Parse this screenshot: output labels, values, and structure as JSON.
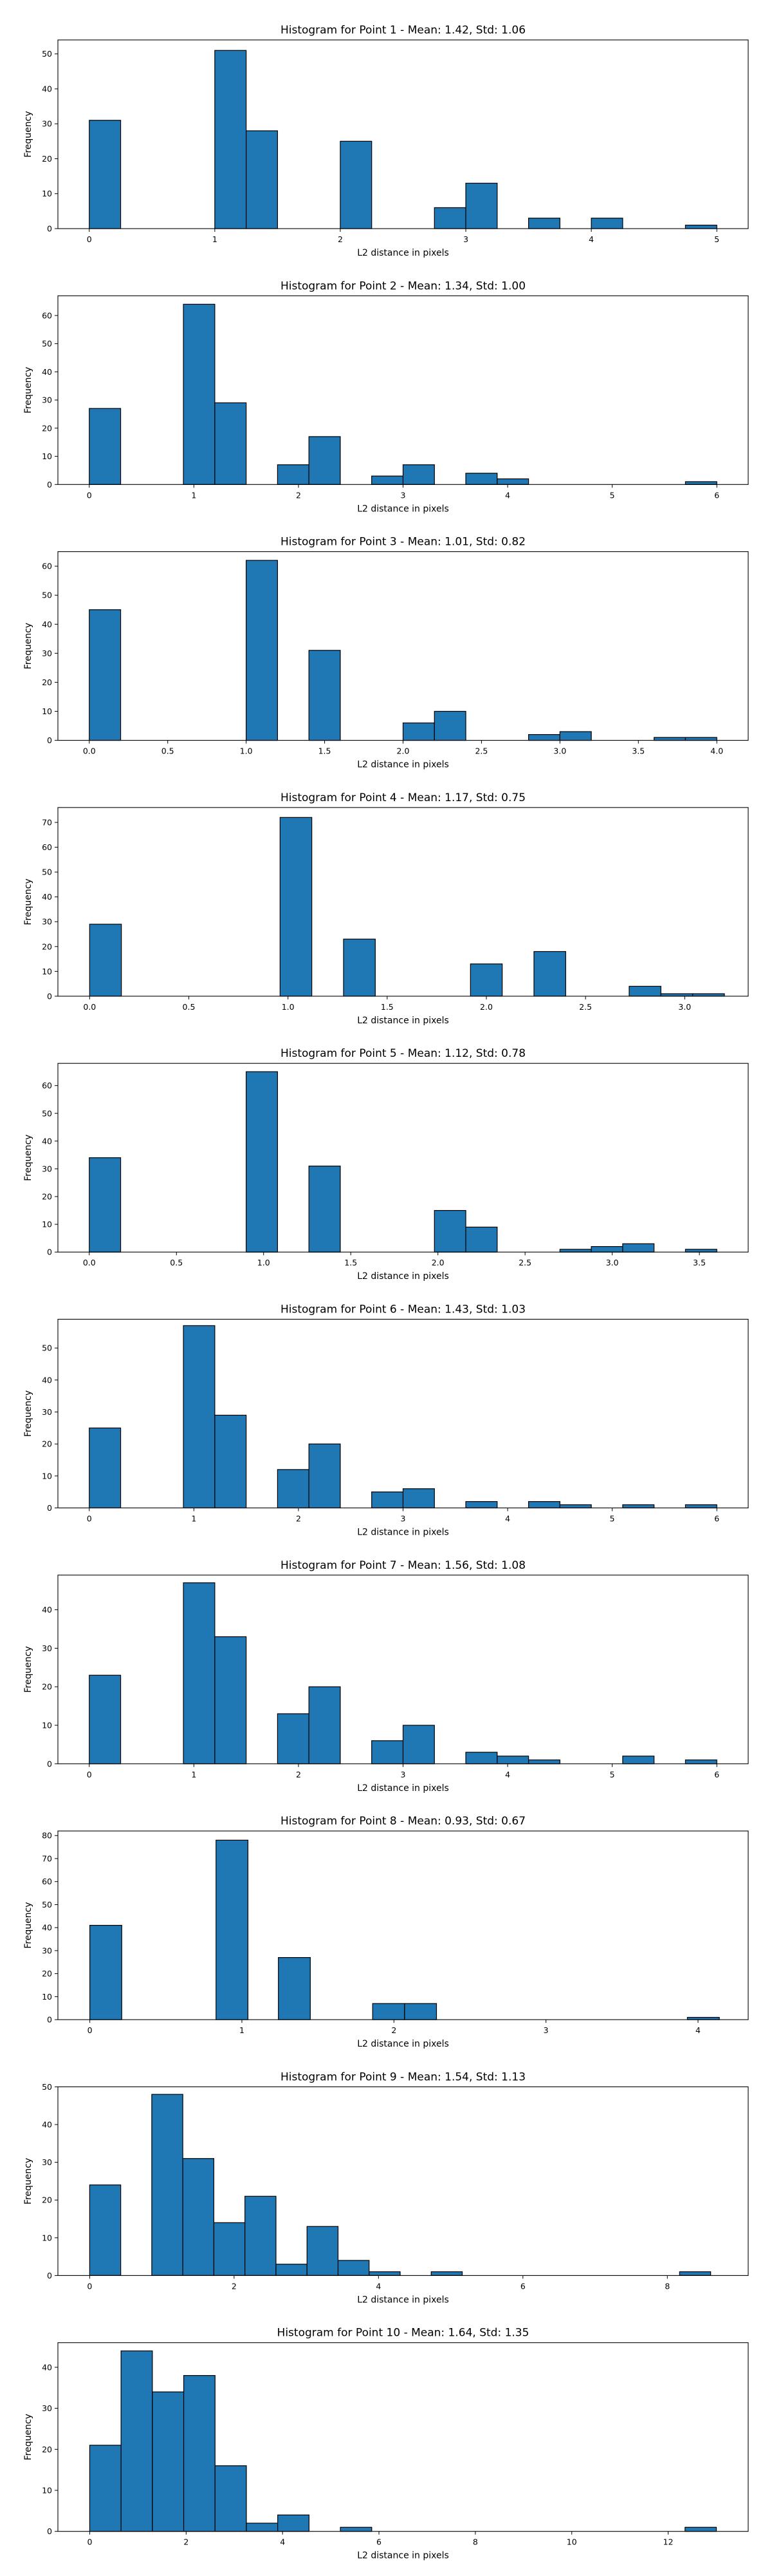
{
  "colors": {
    "bar_fill": "#1f77b4",
    "bar_edge": "#000000",
    "axes": "#000000",
    "background": "#ffffff"
  },
  "chart_data": [
    {
      "type": "histogram",
      "title": "Histogram for Point 1 - Mean: 1.42, Std: 1.06",
      "xlabel": "L2 distance in pixels",
      "ylabel": "Frequency",
      "xlim": [
        -0.25,
        5.25
      ],
      "ylim": [
        0,
        54
      ],
      "xticks": [
        0,
        1,
        2,
        3,
        4,
        5
      ],
      "yticks": [
        0,
        10,
        20,
        30,
        40,
        50
      ],
      "grid": false,
      "legend": "none",
      "bins": [
        {
          "x0": 0.0,
          "x1": 0.25,
          "count": 31
        },
        {
          "x0": 1.0,
          "x1": 1.25,
          "count": 51
        },
        {
          "x0": 1.25,
          "x1": 1.5,
          "count": 28
        },
        {
          "x0": 2.0,
          "x1": 2.25,
          "count": 25
        },
        {
          "x0": 2.75,
          "x1": 3.0,
          "count": 6
        },
        {
          "x0": 3.0,
          "x1": 3.25,
          "count": 13
        },
        {
          "x0": 3.5,
          "x1": 3.75,
          "count": 3
        },
        {
          "x0": 4.0,
          "x1": 4.25,
          "count": 3
        },
        {
          "x0": 4.75,
          "x1": 5.0,
          "count": 1
        }
      ]
    },
    {
      "type": "histogram",
      "title": "Histogram for Point 2 - Mean: 1.34, Std: 1.00",
      "xlabel": "L2 distance in pixels",
      "ylabel": "Frequency",
      "xlim": [
        -0.3,
        6.3
      ],
      "ylim": [
        0,
        67
      ],
      "xticks": [
        0,
        1,
        2,
        3,
        4,
        5,
        6
      ],
      "yticks": [
        0,
        10,
        20,
        30,
        40,
        50,
        60
      ],
      "grid": false,
      "legend": "none",
      "bins": [
        {
          "x0": 0.0,
          "x1": 0.3,
          "count": 27
        },
        {
          "x0": 0.9,
          "x1": 1.2,
          "count": 64
        },
        {
          "x0": 1.2,
          "x1": 1.5,
          "count": 29
        },
        {
          "x0": 1.8,
          "x1": 2.1,
          "count": 7
        },
        {
          "x0": 2.1,
          "x1": 2.4,
          "count": 17
        },
        {
          "x0": 2.7,
          "x1": 3.0,
          "count": 3
        },
        {
          "x0": 3.0,
          "x1": 3.3,
          "count": 7
        },
        {
          "x0": 3.6,
          "x1": 3.9,
          "count": 4
        },
        {
          "x0": 3.9,
          "x1": 4.2,
          "count": 2
        },
        {
          "x0": 5.7,
          "x1": 6.0,
          "count": 1
        }
      ]
    },
    {
      "type": "histogram",
      "title": "Histogram for Point 3 - Mean: 1.01, Std: 0.82",
      "xlabel": "L2 distance in pixels",
      "ylabel": "Frequency",
      "xlim": [
        -0.2,
        4.2
      ],
      "ylim": [
        0,
        65
      ],
      "xticks": [
        0.0,
        0.5,
        1.0,
        1.5,
        2.0,
        2.5,
        3.0,
        3.5,
        4.0
      ],
      "xtick_labels": [
        "0.0",
        "0.5",
        "1.0",
        "1.5",
        "2.0",
        "2.5",
        "3.0",
        "3.5",
        "4.0"
      ],
      "yticks": [
        0,
        10,
        20,
        30,
        40,
        50,
        60
      ],
      "grid": false,
      "legend": "none",
      "bins": [
        {
          "x0": 0.0,
          "x1": 0.2,
          "count": 45
        },
        {
          "x0": 1.0,
          "x1": 1.2,
          "count": 62
        },
        {
          "x0": 1.4,
          "x1": 1.6,
          "count": 31
        },
        {
          "x0": 2.0,
          "x1": 2.2,
          "count": 6
        },
        {
          "x0": 2.2,
          "x1": 2.4,
          "count": 10
        },
        {
          "x0": 2.8,
          "x1": 3.0,
          "count": 2
        },
        {
          "x0": 3.0,
          "x1": 3.2,
          "count": 3
        },
        {
          "x0": 3.6,
          "x1": 3.8,
          "count": 1
        },
        {
          "x0": 3.8,
          "x1": 4.0,
          "count": 1
        }
      ]
    },
    {
      "type": "histogram",
      "title": "Histogram for Point 4 - Mean: 1.17, Std: 0.75",
      "xlabel": "L2 distance in pixels",
      "ylabel": "Frequency",
      "xlim": [
        -0.16,
        3.32
      ],
      "ylim": [
        0,
        76
      ],
      "xticks": [
        0.0,
        0.5,
        1.0,
        1.5,
        2.0,
        2.5,
        3.0
      ],
      "xtick_labels": [
        "0.0",
        "0.5",
        "1.0",
        "1.5",
        "2.0",
        "2.5",
        "3.0"
      ],
      "yticks": [
        0,
        10,
        20,
        30,
        40,
        50,
        60,
        70
      ],
      "grid": false,
      "legend": "none",
      "bins": [
        {
          "x0": 0.0,
          "x1": 0.16,
          "count": 29
        },
        {
          "x0": 0.96,
          "x1": 1.12,
          "count": 72
        },
        {
          "x0": 1.28,
          "x1": 1.44,
          "count": 23
        },
        {
          "x0": 1.92,
          "x1": 2.08,
          "count": 13
        },
        {
          "x0": 2.24,
          "x1": 2.4,
          "count": 18
        },
        {
          "x0": 2.72,
          "x1": 2.88,
          "count": 4
        },
        {
          "x0": 2.88,
          "x1": 3.04,
          "count": 1
        },
        {
          "x0": 3.04,
          "x1": 3.2,
          "count": 1
        }
      ]
    },
    {
      "type": "histogram",
      "title": "Histogram for Point 5 - Mean: 1.12, Std: 0.78",
      "xlabel": "L2 distance in pixels",
      "ylabel": "Frequency",
      "xlim": [
        -0.18,
        3.78
      ],
      "ylim": [
        0,
        68
      ],
      "xticks": [
        0.0,
        0.5,
        1.0,
        1.5,
        2.0,
        2.5,
        3.0,
        3.5
      ],
      "xtick_labels": [
        "0.0",
        "0.5",
        "1.0",
        "1.5",
        "2.0",
        "2.5",
        "3.0",
        "3.5"
      ],
      "yticks": [
        0,
        10,
        20,
        30,
        40,
        50,
        60
      ],
      "grid": false,
      "legend": "none",
      "bins": [
        {
          "x0": 0.0,
          "x1": 0.18,
          "count": 34
        },
        {
          "x0": 0.9,
          "x1": 1.08,
          "count": 65
        },
        {
          "x0": 1.26,
          "x1": 1.44,
          "count": 31
        },
        {
          "x0": 1.98,
          "x1": 2.16,
          "count": 15
        },
        {
          "x0": 2.16,
          "x1": 2.34,
          "count": 9
        },
        {
          "x0": 2.7,
          "x1": 2.88,
          "count": 1
        },
        {
          "x0": 2.88,
          "x1": 3.06,
          "count": 2
        },
        {
          "x0": 3.06,
          "x1": 3.24,
          "count": 3
        },
        {
          "x0": 3.42,
          "x1": 3.6,
          "count": 1
        }
      ]
    },
    {
      "type": "histogram",
      "title": "Histogram for Point 6 - Mean: 1.43, Std: 1.03",
      "xlabel": "L2 distance in pixels",
      "ylabel": "Frequency",
      "xlim": [
        -0.3,
        6.3
      ],
      "ylim": [
        0,
        59
      ],
      "xticks": [
        0,
        1,
        2,
        3,
        4,
        5,
        6
      ],
      "yticks": [
        0,
        10,
        20,
        30,
        40,
        50
      ],
      "grid": false,
      "legend": "none",
      "bins": [
        {
          "x0": 0.0,
          "x1": 0.3,
          "count": 25
        },
        {
          "x0": 0.9,
          "x1": 1.2,
          "count": 57
        },
        {
          "x0": 1.2,
          "x1": 1.5,
          "count": 29
        },
        {
          "x0": 1.8,
          "x1": 2.1,
          "count": 12
        },
        {
          "x0": 2.1,
          "x1": 2.4,
          "count": 20
        },
        {
          "x0": 2.7,
          "x1": 3.0,
          "count": 5
        },
        {
          "x0": 3.0,
          "x1": 3.3,
          "count": 6
        },
        {
          "x0": 3.6,
          "x1": 3.9,
          "count": 2
        },
        {
          "x0": 4.2,
          "x1": 4.5,
          "count": 2
        },
        {
          "x0": 4.5,
          "x1": 4.8,
          "count": 1
        },
        {
          "x0": 5.1,
          "x1": 5.4,
          "count": 1
        },
        {
          "x0": 5.7,
          "x1": 6.0,
          "count": 1
        }
      ]
    },
    {
      "type": "histogram",
      "title": "Histogram for Point 7 - Mean: 1.56, Std: 1.08",
      "xlabel": "L2 distance in pixels",
      "ylabel": "Frequency",
      "xlim": [
        -0.3,
        6.3
      ],
      "ylim": [
        0,
        49
      ],
      "xticks": [
        0,
        1,
        2,
        3,
        4,
        5,
        6
      ],
      "yticks": [
        0,
        10,
        20,
        30,
        40
      ],
      "grid": false,
      "legend": "none",
      "bins": [
        {
          "x0": 0.0,
          "x1": 0.3,
          "count": 23
        },
        {
          "x0": 0.9,
          "x1": 1.2,
          "count": 47
        },
        {
          "x0": 1.2,
          "x1": 1.5,
          "count": 33
        },
        {
          "x0": 1.8,
          "x1": 2.1,
          "count": 13
        },
        {
          "x0": 2.1,
          "x1": 2.4,
          "count": 20
        },
        {
          "x0": 2.7,
          "x1": 3.0,
          "count": 6
        },
        {
          "x0": 3.0,
          "x1": 3.3,
          "count": 10
        },
        {
          "x0": 3.6,
          "x1": 3.9,
          "count": 3
        },
        {
          "x0": 3.9,
          "x1": 4.2,
          "count": 2
        },
        {
          "x0": 4.2,
          "x1": 4.5,
          "count": 1
        },
        {
          "x0": 5.1,
          "x1": 5.4,
          "count": 2
        },
        {
          "x0": 5.7,
          "x1": 6.0,
          "count": 1
        }
      ]
    },
    {
      "type": "histogram",
      "title": "Histogram for Point 8 - Mean: 0.93, Std: 0.67",
      "xlabel": "L2 distance in pixels",
      "ylabel": "Frequency",
      "xlim": [
        -0.21,
        4.33
      ],
      "ylim": [
        0,
        82
      ],
      "xticks": [
        0,
        1,
        2,
        3,
        4
      ],
      "yticks": [
        0,
        10,
        20,
        30,
        40,
        50,
        60,
        70,
        80
      ],
      "grid": false,
      "legend": "none",
      "bins": [
        {
          "x0": 0.0,
          "x1": 0.21,
          "count": 41
        },
        {
          "x0": 0.83,
          "x1": 1.04,
          "count": 78
        },
        {
          "x0": 1.24,
          "x1": 1.45,
          "count": 27
        },
        {
          "x0": 1.86,
          "x1": 2.07,
          "count": 7
        },
        {
          "x0": 2.07,
          "x1": 2.28,
          "count": 7
        },
        {
          "x0": 3.93,
          "x1": 4.14,
          "count": 1
        }
      ]
    },
    {
      "type": "histogram",
      "title": "Histogram for Point 9 - Mean: 1.54, Std: 1.13",
      "xlabel": "L2 distance in pixels",
      "ylabel": "Frequency",
      "xlim": [
        -0.44,
        9.12
      ],
      "ylim": [
        0,
        50
      ],
      "xticks": [
        0,
        2,
        4,
        6,
        8
      ],
      "yticks": [
        0,
        10,
        20,
        30,
        40,
        50
      ],
      "grid": false,
      "legend": "none",
      "bins": [
        {
          "x0": 0.0,
          "x1": 0.43,
          "count": 24
        },
        {
          "x0": 0.86,
          "x1": 1.29,
          "count": 48
        },
        {
          "x0": 1.29,
          "x1": 1.72,
          "count": 31
        },
        {
          "x0": 1.72,
          "x1": 2.15,
          "count": 14
        },
        {
          "x0": 2.15,
          "x1": 2.58,
          "count": 21
        },
        {
          "x0": 2.58,
          "x1": 3.01,
          "count": 3
        },
        {
          "x0": 3.01,
          "x1": 3.44,
          "count": 13
        },
        {
          "x0": 3.44,
          "x1": 3.87,
          "count": 4
        },
        {
          "x0": 3.87,
          "x1": 4.3,
          "count": 1
        },
        {
          "x0": 4.73,
          "x1": 5.16,
          "count": 1
        },
        {
          "x0": 8.17,
          "x1": 8.6,
          "count": 1
        }
      ]
    },
    {
      "type": "histogram",
      "title": "Histogram for Point 10 - Mean: 1.64, Std: 1.35",
      "xlabel": "L2 distance in pixels",
      "ylabel": "Frequency",
      "xlim": [
        -0.66,
        13.66
      ],
      "ylim": [
        0,
        46
      ],
      "xticks": [
        0,
        2,
        4,
        6,
        8,
        10,
        12
      ],
      "yticks": [
        0,
        10,
        20,
        30,
        40
      ],
      "grid": false,
      "legend": "none",
      "bins": [
        {
          "x0": 0.0,
          "x1": 0.65,
          "count": 21
        },
        {
          "x0": 0.65,
          "x1": 1.3,
          "count": 44
        },
        {
          "x0": 1.3,
          "x1": 1.95,
          "count": 34
        },
        {
          "x0": 1.95,
          "x1": 2.6,
          "count": 38
        },
        {
          "x0": 2.6,
          "x1": 3.25,
          "count": 16
        },
        {
          "x0": 3.25,
          "x1": 3.9,
          "count": 2
        },
        {
          "x0": 3.9,
          "x1": 4.55,
          "count": 4
        },
        {
          "x0": 5.2,
          "x1": 5.85,
          "count": 1
        },
        {
          "x0": 12.35,
          "x1": 13.0,
          "count": 1
        }
      ]
    }
  ]
}
